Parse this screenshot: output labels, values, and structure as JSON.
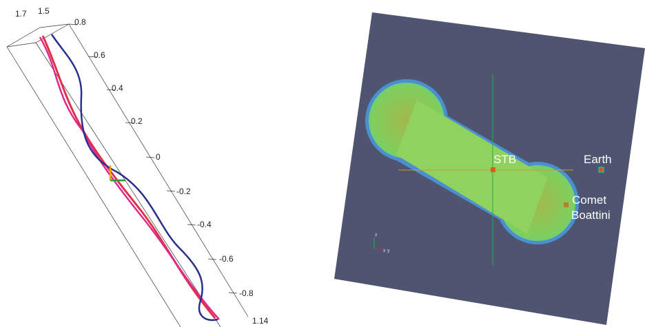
{
  "left_panel": {
    "axis_labels": [
      "1.7",
      "1.5",
      "0.8",
      "0.6",
      "0.4",
      "0.2",
      "0",
      "-0.2",
      "-0.4",
      "-0.6",
      "-0.8",
      "1.14"
    ]
  },
  "right_panel": {
    "labels": {
      "stb": "STB",
      "earth": "Earth",
      "comet": "Comet",
      "boattini": "Boattini"
    },
    "triad": {
      "z": "z",
      "x": "x",
      "y": "y"
    }
  }
}
